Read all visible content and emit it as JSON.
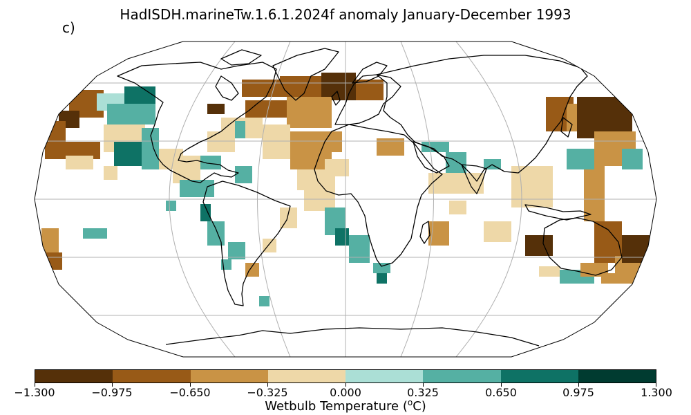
{
  "title": "HadISDH.marineTw.1.6.1.2024f anomaly January-December 1993",
  "panel_label": "c)",
  "colorbar": {
    "label_prefix": "Wetbulb Temperature (",
    "label_sup": "o",
    "label_suffix": "C)",
    "ticks": [
      "−1.300",
      "−0.975",
      "−0.650",
      "−0.325",
      "0.000",
      "0.325",
      "0.650",
      "0.975",
      "1.300"
    ],
    "colors": [
      "#553009",
      "#985a17",
      "#c99345",
      "#eed8a8",
      "#abdfd6",
      "#55b0a3",
      "#0e7265",
      "#003b30"
    ]
  },
  "colors": {
    "coastline": "#000000",
    "graticule": "#b0b0b0",
    "map_border": "#000000",
    "land": "#ffffff"
  }
}
